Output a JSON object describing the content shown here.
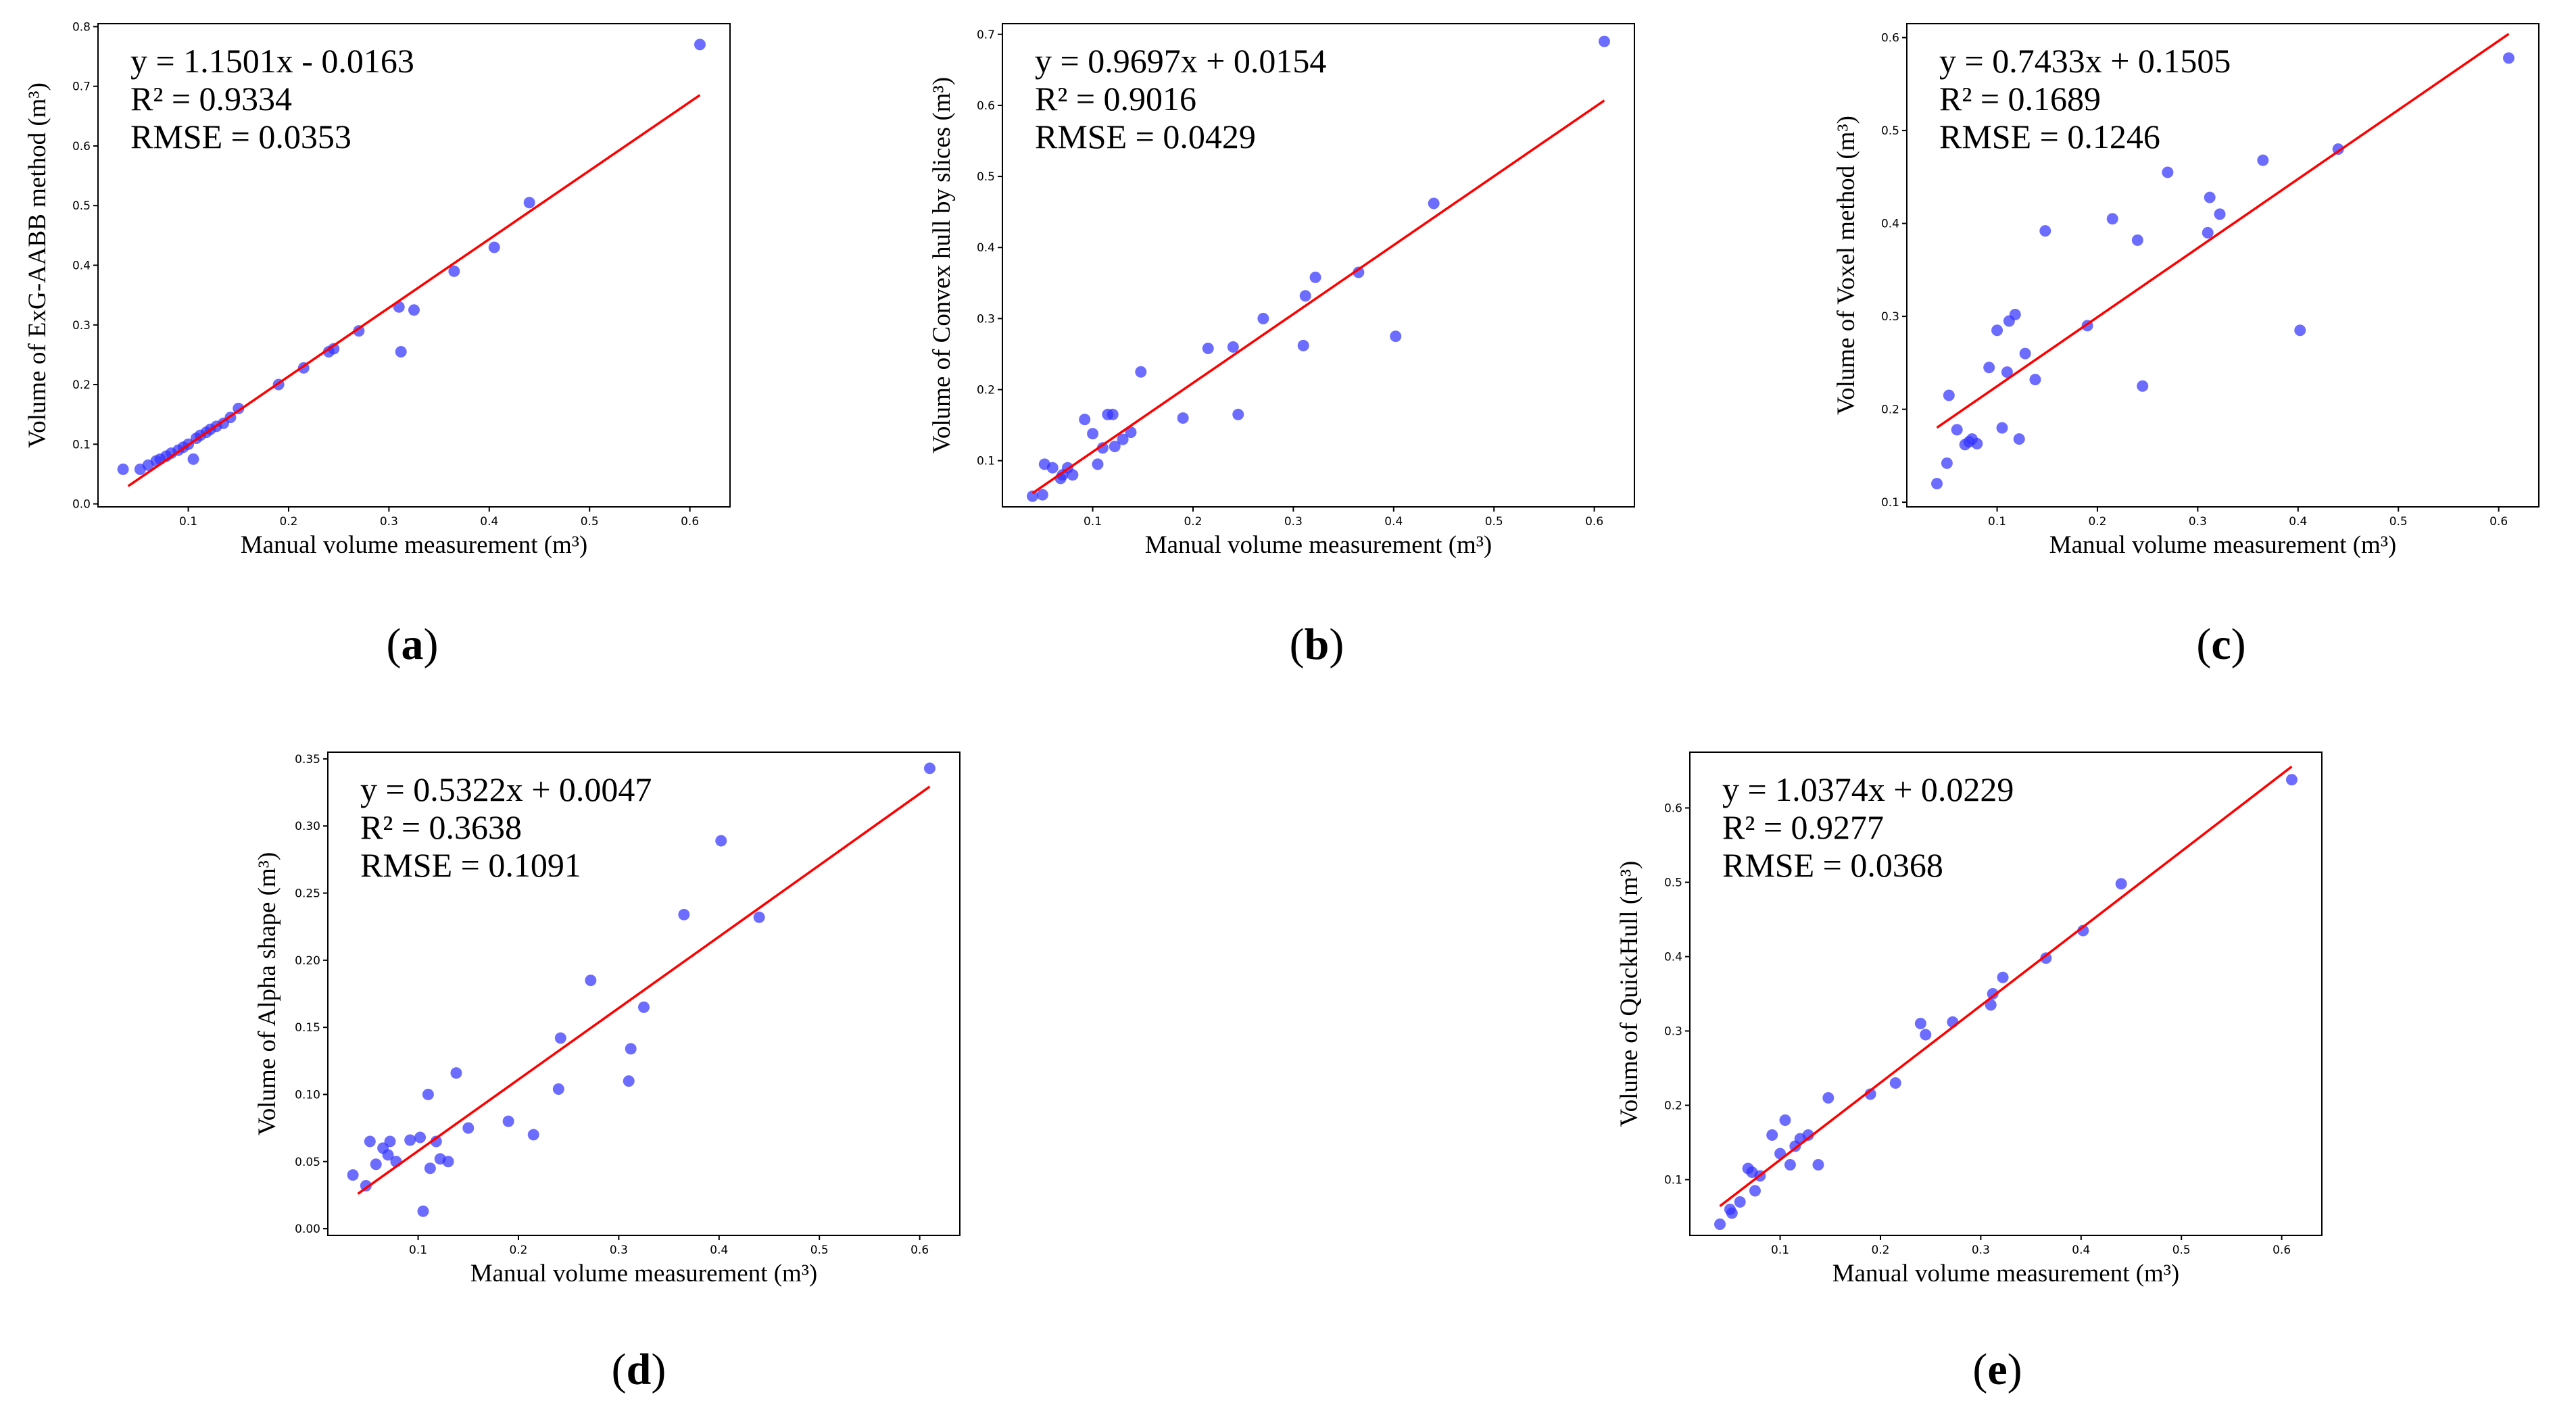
{
  "colors": {
    "points": "#3333ff",
    "fit_line": "#ff0000",
    "axes": "#000000"
  },
  "chart_data": [
    {
      "panel": "a",
      "type": "scatter",
      "xlabel": "Manual volume measurement (m³)",
      "ylabel": "Volume of ExG-AABB method (m³)",
      "xlim": [
        0.01,
        0.64
      ],
      "ylim": [
        -0.005,
        0.805
      ],
      "xticks": [
        0.1,
        0.2,
        0.3,
        0.4,
        0.5,
        0.6
      ],
      "yticks": [
        0.0,
        0.1,
        0.2,
        0.3,
        0.4,
        0.5,
        0.6,
        0.7,
        0.8
      ],
      "xtick_labels": [
        "0.1",
        "0.2",
        "0.3",
        "0.4",
        "0.5",
        "0.6"
      ],
      "ytick_labels": [
        "0.0",
        "0.1",
        "0.2",
        "0.3",
        "0.4",
        "0.5",
        "0.6",
        "0.7",
        "0.8"
      ],
      "annotations": [
        "y = 1.1501x - 0.0163",
        "R² = 0.9334",
        "RMSE = 0.0353"
      ],
      "fit": {
        "slope": 1.1501,
        "intercept": -0.0163,
        "x_range": [
          0.04,
          0.61
        ]
      },
      "points": [
        [
          0.035,
          0.058
        ],
        [
          0.052,
          0.058
        ],
        [
          0.06,
          0.065
        ],
        [
          0.068,
          0.072
        ],
        [
          0.072,
          0.075
        ],
        [
          0.078,
          0.08
        ],
        [
          0.083,
          0.085
        ],
        [
          0.09,
          0.09
        ],
        [
          0.095,
          0.095
        ],
        [
          0.1,
          0.1
        ],
        [
          0.105,
          0.075
        ],
        [
          0.108,
          0.11
        ],
        [
          0.112,
          0.115
        ],
        [
          0.118,
          0.12
        ],
        [
          0.122,
          0.125
        ],
        [
          0.128,
          0.13
        ],
        [
          0.135,
          0.135
        ],
        [
          0.142,
          0.145
        ],
        [
          0.15,
          0.16
        ],
        [
          0.19,
          0.2
        ],
        [
          0.215,
          0.228
        ],
        [
          0.24,
          0.255
        ],
        [
          0.245,
          0.26
        ],
        [
          0.27,
          0.29
        ],
        [
          0.31,
          0.33
        ],
        [
          0.312,
          0.255
        ],
        [
          0.325,
          0.325
        ],
        [
          0.365,
          0.39
        ],
        [
          0.405,
          0.43
        ],
        [
          0.44,
          0.505
        ],
        [
          0.61,
          0.77
        ]
      ]
    },
    {
      "panel": "b",
      "type": "scatter",
      "xlabel": "Manual volume measurement (m³)",
      "ylabel": "Volume of Convex hull by slices (m³)",
      "xlim": [
        0.01,
        0.64
      ],
      "ylim": [
        0.035,
        0.715
      ],
      "xticks": [
        0.1,
        0.2,
        0.3,
        0.4,
        0.5,
        0.6
      ],
      "yticks": [
        0.1,
        0.2,
        0.3,
        0.4,
        0.5,
        0.6,
        0.7
      ],
      "xtick_labels": [
        "0.1",
        "0.2",
        "0.3",
        "0.4",
        "0.5",
        "0.6"
      ],
      "ytick_labels": [
        "0.1",
        "0.2",
        "0.3",
        "0.4",
        "0.5",
        "0.6",
        "0.7"
      ],
      "annotations": [
        "y = 0.9697x + 0.0154",
        "R² = 0.9016",
        "RMSE = 0.0429"
      ],
      "fit": {
        "slope": 0.9697,
        "intercept": 0.0154,
        "x_range": [
          0.04,
          0.61
        ]
      },
      "points": [
        [
          0.04,
          0.05
        ],
        [
          0.05,
          0.052
        ],
        [
          0.052,
          0.095
        ],
        [
          0.06,
          0.09
        ],
        [
          0.068,
          0.075
        ],
        [
          0.07,
          0.08
        ],
        [
          0.075,
          0.09
        ],
        [
          0.08,
          0.08
        ],
        [
          0.092,
          0.158
        ],
        [
          0.1,
          0.138
        ],
        [
          0.105,
          0.095
        ],
        [
          0.11,
          0.118
        ],
        [
          0.115,
          0.165
        ],
        [
          0.12,
          0.165
        ],
        [
          0.122,
          0.12
        ],
        [
          0.13,
          0.13
        ],
        [
          0.138,
          0.14
        ],
        [
          0.148,
          0.225
        ],
        [
          0.19,
          0.16
        ],
        [
          0.215,
          0.258
        ],
        [
          0.24,
          0.26
        ],
        [
          0.245,
          0.165
        ],
        [
          0.27,
          0.3
        ],
        [
          0.31,
          0.262
        ],
        [
          0.312,
          0.332
        ],
        [
          0.322,
          0.358
        ],
        [
          0.365,
          0.365
        ],
        [
          0.402,
          0.275
        ],
        [
          0.44,
          0.462
        ],
        [
          0.61,
          0.69
        ]
      ]
    },
    {
      "panel": "c",
      "type": "scatter",
      "xlabel": "Manual volume measurement (m³)",
      "ylabel": "Volume of Voxel method (m³)",
      "xlim": [
        0.01,
        0.64
      ],
      "ylim": [
        0.095,
        0.615
      ],
      "xticks": [
        0.1,
        0.2,
        0.3,
        0.4,
        0.5,
        0.6
      ],
      "yticks": [
        0.1,
        0.2,
        0.3,
        0.4,
        0.5,
        0.6
      ],
      "xtick_labels": [
        "0.1",
        "0.2",
        "0.3",
        "0.4",
        "0.5",
        "0.6"
      ],
      "ytick_labels": [
        "0.1",
        "0.2",
        "0.3",
        "0.4",
        "0.5",
        "0.6"
      ],
      "annotations": [
        "y = 0.7433x + 0.1505",
        "R² = 0.1689",
        "RMSE = 0.1246"
      ],
      "fit": {
        "slope": 0.7433,
        "intercept": 0.1505,
        "x_range": [
          0.04,
          0.61
        ]
      },
      "points": [
        [
          0.04,
          0.12
        ],
        [
          0.05,
          0.142
        ],
        [
          0.052,
          0.215
        ],
        [
          0.06,
          0.178
        ],
        [
          0.068,
          0.162
        ],
        [
          0.072,
          0.165
        ],
        [
          0.075,
          0.168
        ],
        [
          0.08,
          0.163
        ],
        [
          0.092,
          0.245
        ],
        [
          0.1,
          0.285
        ],
        [
          0.105,
          0.18
        ],
        [
          0.11,
          0.24
        ],
        [
          0.112,
          0.295
        ],
        [
          0.118,
          0.302
        ],
        [
          0.122,
          0.168
        ],
        [
          0.128,
          0.26
        ],
        [
          0.138,
          0.232
        ],
        [
          0.148,
          0.392
        ],
        [
          0.19,
          0.29
        ],
        [
          0.215,
          0.405
        ],
        [
          0.24,
          0.382
        ],
        [
          0.245,
          0.225
        ],
        [
          0.27,
          0.455
        ],
        [
          0.31,
          0.39
        ],
        [
          0.312,
          0.428
        ],
        [
          0.322,
          0.41
        ],
        [
          0.365,
          0.468
        ],
        [
          0.402,
          0.285
        ],
        [
          0.44,
          0.48
        ],
        [
          0.61,
          0.578
        ]
      ]
    },
    {
      "panel": "d",
      "type": "scatter",
      "xlabel": "Manual volume measurement (m³)",
      "ylabel": "Volume of Alpha shape (m³)",
      "xlim": [
        0.01,
        0.64
      ],
      "ylim": [
        -0.005,
        0.355
      ],
      "xticks": [
        0.1,
        0.2,
        0.3,
        0.4,
        0.5,
        0.6
      ],
      "yticks": [
        0.0,
        0.05,
        0.1,
        0.15,
        0.2,
        0.25,
        0.3,
        0.35
      ],
      "xtick_labels": [
        "0.1",
        "0.2",
        "0.3",
        "0.4",
        "0.5",
        "0.6"
      ],
      "ytick_labels": [
        "0.00",
        "0.05",
        "0.10",
        "0.15",
        "0.20",
        "0.25",
        "0.30",
        "0.35"
      ],
      "annotations": [
        "y = 0.5322x + 0.0047",
        "R² = 0.3638",
        "RMSE = 0.1091"
      ],
      "fit": {
        "slope": 0.5322,
        "intercept": 0.0047,
        "x_range": [
          0.04,
          0.61
        ]
      },
      "points": [
        [
          0.035,
          0.04
        ],
        [
          0.048,
          0.032
        ],
        [
          0.052,
          0.065
        ],
        [
          0.058,
          0.048
        ],
        [
          0.065,
          0.06
        ],
        [
          0.07,
          0.055
        ],
        [
          0.072,
          0.065
        ],
        [
          0.078,
          0.05
        ],
        [
          0.092,
          0.066
        ],
        [
          0.102,
          0.068
        ],
        [
          0.105,
          0.013
        ],
        [
          0.11,
          0.1
        ],
        [
          0.112,
          0.045
        ],
        [
          0.118,
          0.065
        ],
        [
          0.122,
          0.052
        ],
        [
          0.13,
          0.05
        ],
        [
          0.138,
          0.116
        ],
        [
          0.15,
          0.075
        ],
        [
          0.19,
          0.08
        ],
        [
          0.215,
          0.07
        ],
        [
          0.24,
          0.104
        ],
        [
          0.242,
          0.142
        ],
        [
          0.272,
          0.185
        ],
        [
          0.31,
          0.11
        ],
        [
          0.312,
          0.134
        ],
        [
          0.325,
          0.165
        ],
        [
          0.365,
          0.234
        ],
        [
          0.402,
          0.289
        ],
        [
          0.44,
          0.232
        ],
        [
          0.61,
          0.343
        ]
      ]
    },
    {
      "panel": "e",
      "type": "scatter",
      "xlabel": "Manual volume measurement (m³)",
      "ylabel": "Volume of QuickHull (m³)",
      "xlim": [
        0.01,
        0.64
      ],
      "ylim": [
        0.025,
        0.675
      ],
      "xticks": [
        0.1,
        0.2,
        0.3,
        0.4,
        0.5,
        0.6
      ],
      "yticks": [
        0.1,
        0.2,
        0.3,
        0.4,
        0.5,
        0.6
      ],
      "xtick_labels": [
        "0.1",
        "0.2",
        "0.3",
        "0.4",
        "0.5",
        "0.6"
      ],
      "ytick_labels": [
        "0.1",
        "0.2",
        "0.3",
        "0.4",
        "0.5",
        "0.6"
      ],
      "annotations": [
        "y = 1.0374x + 0.0229",
        "R² = 0.9277",
        "RMSE = 0.0368"
      ],
      "fit": {
        "slope": 1.0374,
        "intercept": 0.0229,
        "x_range": [
          0.04,
          0.61
        ]
      },
      "points": [
        [
          0.04,
          0.04
        ],
        [
          0.05,
          0.06
        ],
        [
          0.052,
          0.055
        ],
        [
          0.06,
          0.07
        ],
        [
          0.068,
          0.115
        ],
        [
          0.072,
          0.11
        ],
        [
          0.075,
          0.085
        ],
        [
          0.08,
          0.105
        ],
        [
          0.092,
          0.16
        ],
        [
          0.1,
          0.135
        ],
        [
          0.105,
          0.18
        ],
        [
          0.11,
          0.12
        ],
        [
          0.115,
          0.145
        ],
        [
          0.12,
          0.155
        ],
        [
          0.128,
          0.16
        ],
        [
          0.138,
          0.12
        ],
        [
          0.148,
          0.21
        ],
        [
          0.19,
          0.215
        ],
        [
          0.215,
          0.23
        ],
        [
          0.24,
          0.31
        ],
        [
          0.245,
          0.295
        ],
        [
          0.272,
          0.312
        ],
        [
          0.31,
          0.335
        ],
        [
          0.312,
          0.35
        ],
        [
          0.322,
          0.372
        ],
        [
          0.365,
          0.398
        ],
        [
          0.402,
          0.435
        ],
        [
          0.44,
          0.498
        ],
        [
          0.61,
          0.638
        ]
      ]
    }
  ],
  "panel_labels": [
    "(a)",
    "(b)",
    "(c)",
    "(d)",
    "(e)"
  ]
}
